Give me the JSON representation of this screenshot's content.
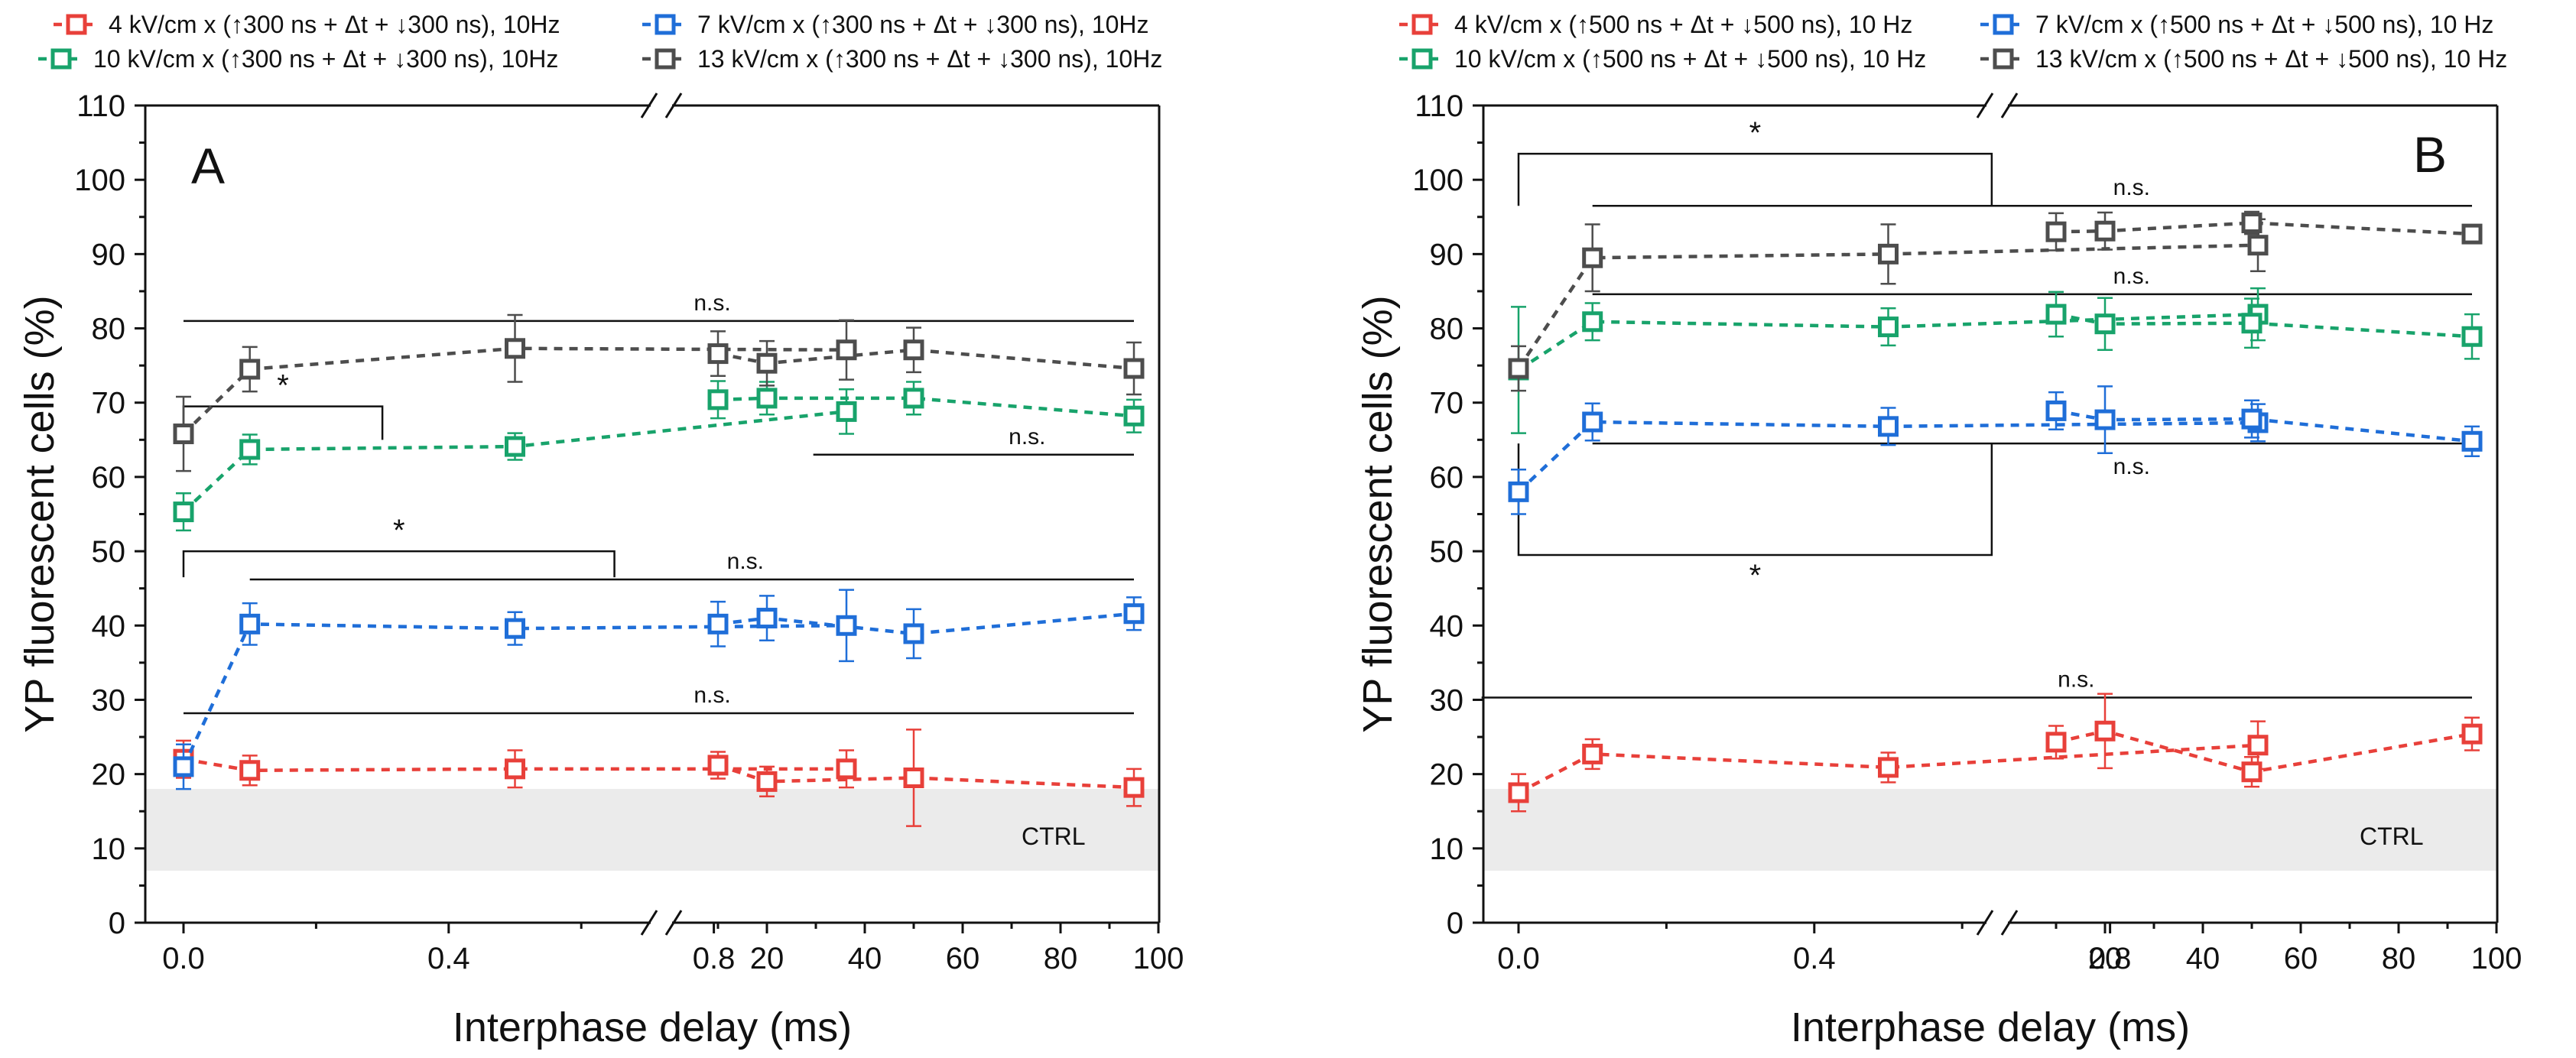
{
  "figure": {
    "x_axis_title": "Interphase delay (ms)",
    "y_axis_title": "YP fluorescent cells (%)",
    "y_ticks": [
      0,
      10,
      20,
      30,
      40,
      50,
      60,
      70,
      80,
      90,
      100,
      110
    ],
    "x_ticks_left_segment": [
      "0.0",
      "0.4",
      "0.8"
    ],
    "x_ticks_right_segment": [
      "20",
      "40",
      "60",
      "80",
      "100"
    ],
    "ctrl_label": "CTRL",
    "ctrl_band": [
      7,
      18
    ]
  },
  "chart_data": [
    {
      "panel": "A",
      "type": "line",
      "title": "A",
      "xlabel": "Interphase delay (ms)",
      "ylabel": "YP fluorescent cells (%)",
      "ylim": [
        0,
        110
      ],
      "x_axis_break": "broken axis: 0–1 ms linear, then 0–100 ms linear",
      "x": [
        0.0,
        0.1,
        0.5,
        1,
        10,
        20,
        50,
        95
      ],
      "series": [
        {
          "name": "4 kV/cm x (↑300 ns + Δt + ↓300 ns), 10Hz",
          "color": "#e8403a",
          "values": [
            22,
            20.5,
            20.7,
            20.7,
            21.2,
            19,
            19.5,
            18.2
          ],
          "errors": [
            2.5,
            2,
            2.5,
            2.5,
            1.8,
            2,
            6.5,
            2.5
          ]
        },
        {
          "name": "7 kV/cm x (↑300 ns + Δt + ↓300 ns), 10Hz",
          "color": "#1f6ed8",
          "values": [
            21,
            40.2,
            39.6,
            40,
            40.2,
            41,
            38.9,
            41.6
          ],
          "errors": [
            3,
            2.8,
            2.2,
            4.8,
            3,
            3,
            3.3,
            2.2
          ]
        },
        {
          "name": "10 kV/cm x (↑300 ns + Δt + ↓300 ns), 10Hz",
          "color": "#18a36b",
          "values": [
            55.3,
            63.7,
            64.1,
            68.8,
            70.4,
            70.6,
            70.6,
            68.2
          ],
          "errors": [
            2.5,
            2,
            1.8,
            3,
            2.5,
            2.2,
            2.2,
            2.2
          ]
        },
        {
          "name": "13 kV/cm x (↑300 ns + Δt + ↓300 ns), 10Hz",
          "color": "#4d4d4d",
          "values": [
            65.8,
            74.5,
            77.3,
            77.1,
            76.6,
            75.3,
            77.1,
            74.6
          ],
          "errors": [
            5,
            3,
            4.5,
            4,
            3,
            3,
            3,
            3.5
          ]
        }
      ],
      "annotations": [
        {
          "text": "n.s.",
          "y": 81,
          "x_from": 0.0,
          "x_to": 95
        },
        {
          "text": "*",
          "y": 69.5,
          "bracket_to": 65,
          "x_from": 0.0,
          "x_to": 0.3
        },
        {
          "text": "n.s.",
          "y": 63,
          "x_from": 0.95,
          "x_to": 95
        },
        {
          "text": "*",
          "y": 50,
          "bracket_to": 46.5,
          "x_from": 0.0,
          "x_to": 0.65
        },
        {
          "text": "n.s.",
          "y": 46.2,
          "x_from": 0.1,
          "x_to": 95
        },
        {
          "text": "n.s.",
          "y": 28.2,
          "x_from": 0.0,
          "x_to": 95
        }
      ]
    },
    {
      "panel": "B",
      "type": "line",
      "title": "B",
      "xlabel": "Interphase delay (ms)",
      "ylabel": "YP fluorescent cells (%)",
      "ylim": [
        0,
        110
      ],
      "x_axis_break": "broken axis: 0–1 ms linear, then 0–100 ms linear",
      "x": [
        0.0,
        0.1,
        0.5,
        1,
        10,
        20,
        50,
        95
      ],
      "series": [
        {
          "name": "4 kV/cm x (↑500 ns + Δt + ↓500 ns), 10 Hz",
          "color": "#e8403a",
          "values": [
            17.5,
            22.7,
            20.9,
            23.9,
            24.3,
            25.8,
            20.3,
            25.4
          ],
          "errors": [
            2.5,
            2,
            2,
            3.2,
            2.2,
            5,
            2,
            2.2
          ]
        },
        {
          "name": "7 kV/cm x (↑500 ns + Δt + ↓500 ns), 10 Hz",
          "color": "#1f6ed8",
          "values": [
            58,
            67.4,
            66.8,
            67.3,
            68.9,
            67.7,
            67.8,
            64.8
          ],
          "errors": [
            3,
            2.5,
            2.5,
            2.5,
            2.5,
            4.5,
            2.5,
            2
          ]
        },
        {
          "name": "10 kV/cm x (↑500 ns + Δt + ↓500 ns), 10 Hz",
          "color": "#18a36b",
          "values": [
            74.4,
            80.9,
            80.2,
            81.9,
            81.9,
            80.6,
            80.7,
            78.9
          ],
          "errors": [
            8.5,
            2.5,
            2.5,
            3.5,
            3,
            3.5,
            3.3,
            3
          ]
        },
        {
          "name": "13 kV/cm x (↑500 ns + Δt + ↓500 ns), 10 Hz",
          "color": "#4d4d4d",
          "values": [
            74.6,
            89.5,
            90,
            91.2,
            93,
            93.1,
            94.2,
            92.7
          ],
          "errors": [
            3,
            4.5,
            4,
            3.5,
            2.5,
            2.5,
            1.5,
            1.2
          ]
        }
      ],
      "annotations": [
        {
          "text": "*",
          "y": 103.5,
          "bracket_to": 96.5,
          "x_from": 0.0,
          "x_to": 0.64
        },
        {
          "text": "n.s.",
          "y": 96.5,
          "x_from": 0.1,
          "x_to": 95
        },
        {
          "text": "n.s.",
          "y": 84.6,
          "x_from": 0.1,
          "x_to": 95
        },
        {
          "text": "n.s.",
          "y": 64.5,
          "x_from": 0.1,
          "x_to": 95
        },
        {
          "text": "*",
          "y": 49.5,
          "bracket_to": 64.5,
          "x_from": 0.0,
          "x_to": 0.64
        },
        {
          "text": "n.s.",
          "y": 30.3,
          "x_from": -0.05,
          "x_to": 95
        }
      ]
    }
  ]
}
